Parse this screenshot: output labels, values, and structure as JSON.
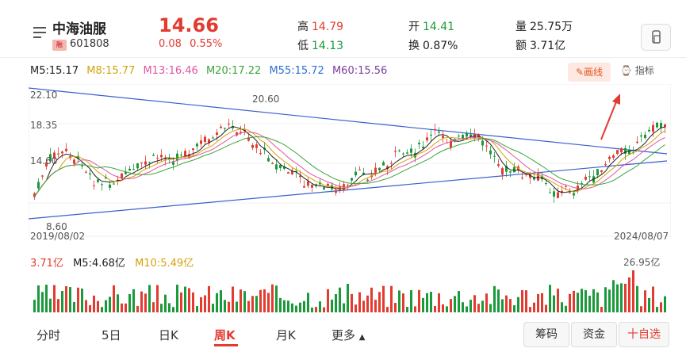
{
  "stock": {
    "name": "中海油服",
    "code": "601808",
    "badge": "融",
    "price": "14.66",
    "change": "0.08",
    "pct": "0.55%"
  },
  "stats": {
    "high_label": "高",
    "high": "14.79",
    "low_label": "低",
    "low": "14.13",
    "open_label": "开",
    "open": "14.41",
    "turnover_label": "换",
    "turnover": "0.87%",
    "vol_label": "量",
    "volume": "25.75万",
    "amt_label": "额",
    "amount": "3.71亿"
  },
  "ma": [
    {
      "label": "M5:15.17",
      "color": "#222222"
    },
    {
      "label": "M8:15.77",
      "color": "#d4a20a"
    },
    {
      "label": "M13:16.46",
      "color": "#e0559f"
    },
    {
      "label": "M20:17.22",
      "color": "#3aa53a"
    },
    {
      "label": "M55:15.72",
      "color": "#2f6fd6"
    },
    {
      "label": "M60:15.56",
      "color": "#7a3fa0"
    }
  ],
  "toolbar": {
    "draw": "画线",
    "indicator": "指标"
  },
  "axis": {
    "y_top": "22.10",
    "y_mid": "18.35",
    "y_low": "14.60",
    "start_date": "2019/08/02",
    "end_date": "2024/08/07",
    "high_mark": "20.60",
    "low_mark": "8.60"
  },
  "volume": {
    "v1": "3.71亿",
    "v2": "M5:4.68亿",
    "v3": "M10:5.49亿",
    "max": "26.95亿"
  },
  "tabs": [
    "分时",
    "5日",
    "日K",
    "周K",
    "月K",
    "更多"
  ],
  "buttons": {
    "chips": "筹码",
    "funds": "资金",
    "watch": "十自选"
  },
  "colors": {
    "up": "#e23b30",
    "down": "#1a9a3a",
    "accent": "#e23b30"
  }
}
